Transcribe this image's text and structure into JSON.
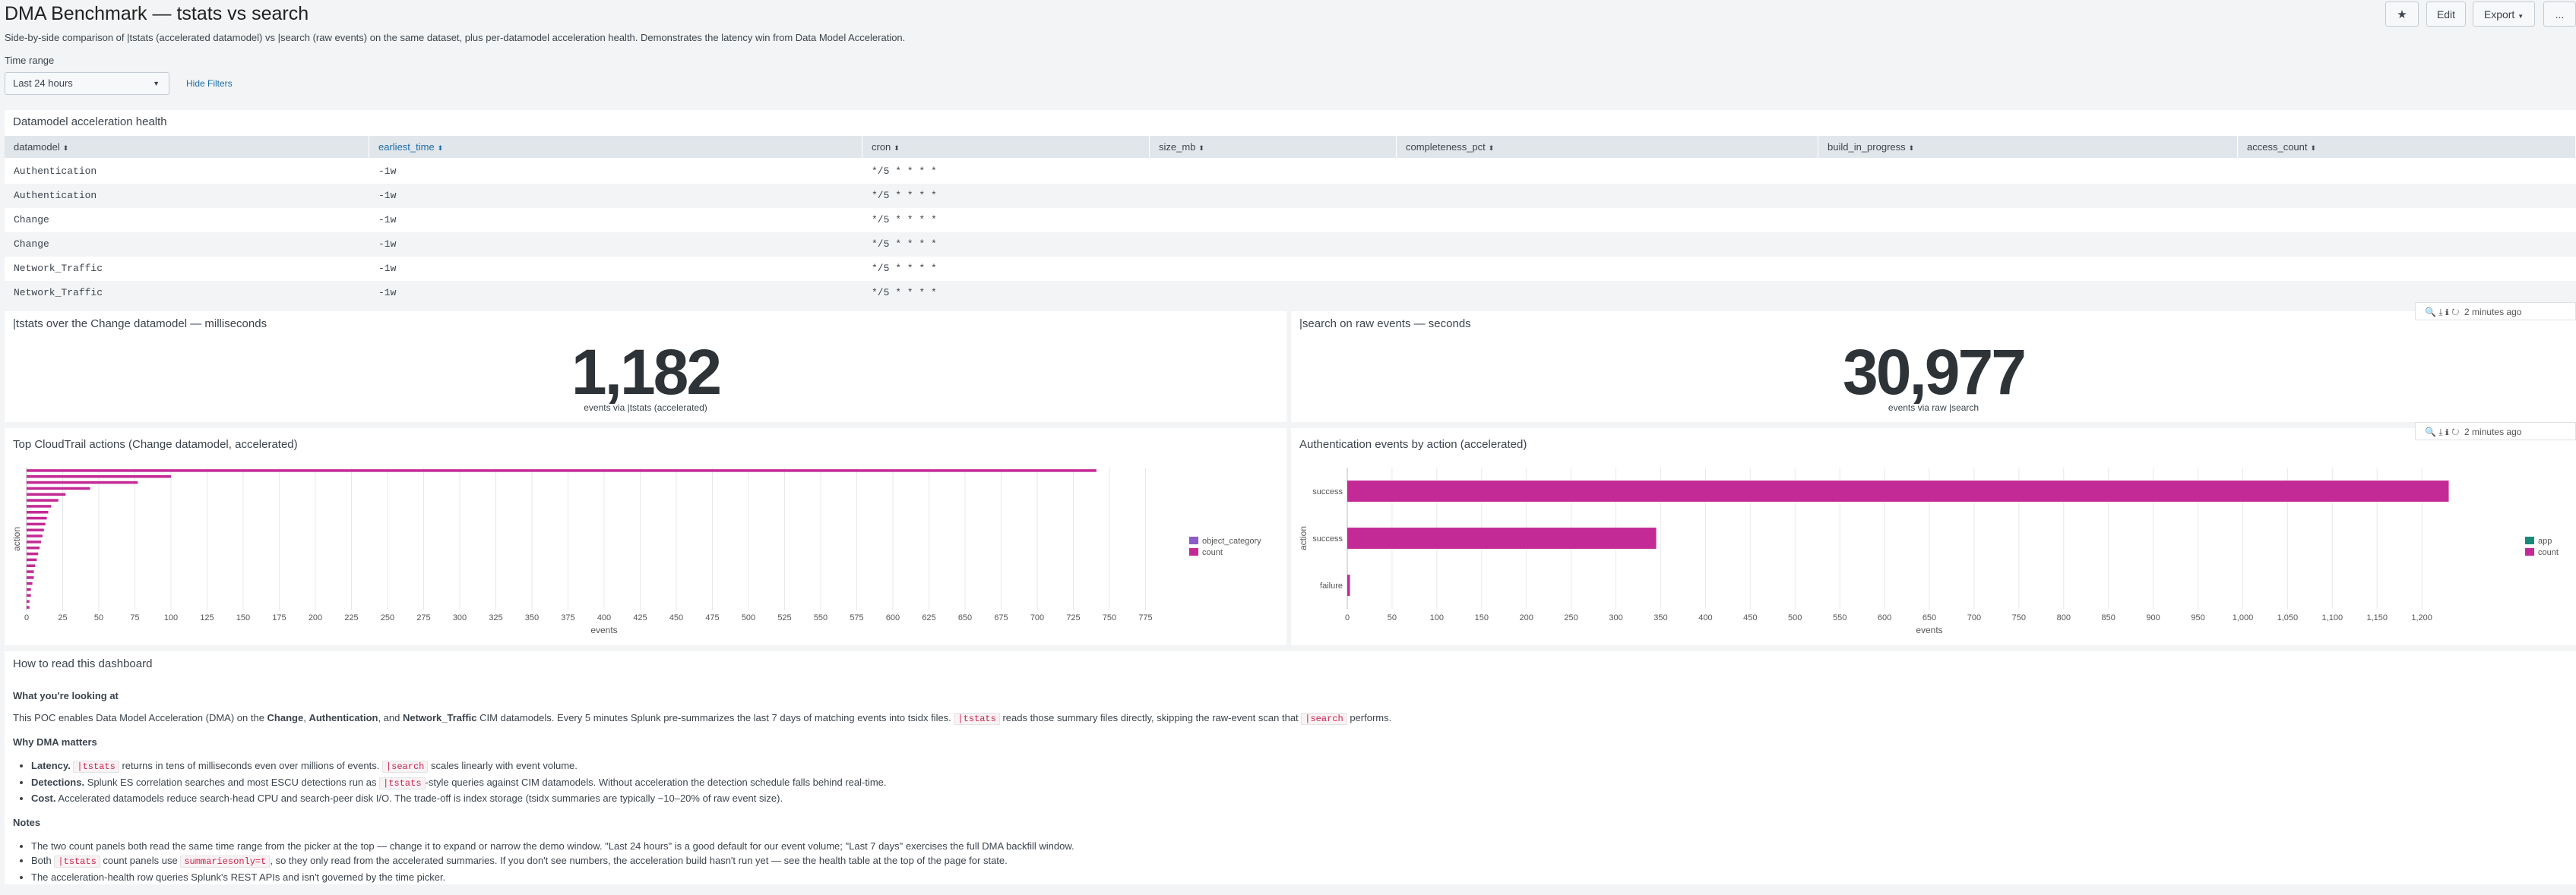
{
  "header": {
    "title": "DMA Benchmark — tstats vs search",
    "description": "Side-by-side comparison of |tstats (accelerated datamodel) vs |search (raw events) on the same dataset, plus per-datamodel acceleration health. Demonstrates the latency win from Data Model Acceleration.",
    "time_range_label": "Time range",
    "time_range_value": "Last 24 hours",
    "hide_filters": "Hide Filters",
    "buttons": [
      "Edit",
      "Export",
      "..."
    ]
  },
  "toolbar": {
    "updated": "2 minutes ago"
  },
  "table": {
    "title": "Datamodel acceleration health",
    "columns": [
      "datamodel",
      "earliest_time",
      "cron",
      "size_mb",
      "completeness_pct",
      "build_in_progress",
      "access_count"
    ],
    "rows": [
      [
        "Authentication",
        "-1w",
        "*/5 * * * *"
      ],
      [
        "Authentication",
        "-1w",
        "*/5 * * * *"
      ],
      [
        "Change",
        "-1w",
        "*/5 * * * *"
      ],
      [
        "Change",
        "-1w",
        "*/5 * * * *"
      ],
      [
        "Network_Traffic",
        "-1w",
        "*/5 * * * *"
      ],
      [
        "Network_Traffic",
        "-1w",
        "*/5 * * * *"
      ]
    ]
  },
  "singles": [
    {
      "title": "|tstats over the Change datamodel — milliseconds",
      "value": 1182,
      "value_label": "1,182",
      "caption": "events via |tstats (accelerated)"
    },
    {
      "title": "|search on raw events — seconds",
      "value": 30977,
      "value_label": "30,977",
      "caption": "events via raw |search"
    }
  ],
  "chart_data": [
    {
      "type": "hbar",
      "title": "Top CloudTrail actions (Change datamodel, accelerated)",
      "x_label": "events",
      "y_label": "action",
      "categories": [
        null,
        null,
        null,
        null,
        null,
        null,
        null,
        null,
        null,
        null,
        null,
        null,
        null,
        null,
        null,
        null,
        null,
        null,
        null,
        null,
        null,
        null,
        null,
        null
      ],
      "series": [
        {
          "name": "object_category",
          "color": "#8a5cc7",
          "values": [
            null,
            null,
            null,
            null,
            null,
            null,
            null,
            null,
            null,
            null,
            null,
            null,
            null,
            null,
            null,
            null,
            null,
            null,
            null,
            null,
            null,
            null,
            null,
            null
          ]
        },
        {
          "name": "count",
          "color": "#c42a96",
          "values": [
            741,
            100,
            77,
            44,
            27,
            22,
            17,
            15,
            14,
            13,
            12,
            11,
            10,
            9,
            8,
            7,
            6,
            5,
            5,
            4,
            3,
            3,
            2,
            2
          ]
        }
      ],
      "xlim": [
        0,
        800
      ],
      "xticks": [
        0,
        25,
        50,
        75,
        100,
        125,
        150,
        175,
        200,
        225,
        250,
        275,
        300,
        325,
        350,
        375,
        400,
        425,
        450,
        475,
        500,
        525,
        550,
        575,
        600,
        625,
        650,
        675,
        700,
        725,
        750,
        775
      ],
      "grid": true,
      "legend": "right"
    },
    {
      "type": "hbar",
      "title": "Authentication events by action (accelerated)",
      "x_label": "events",
      "y_label": "action",
      "categories": [
        "success",
        "success",
        "failure"
      ],
      "series": [
        {
          "name": "app",
          "color": "#1a8a78",
          "values": [
            null,
            null,
            null
          ]
        },
        {
          "name": "count",
          "color": "#c42a96",
          "values": [
            1230,
            345,
            3
          ]
        }
      ],
      "xlim": [
        0,
        1300
      ],
      "xticks": [
        0,
        50,
        100,
        150,
        200,
        250,
        300,
        350,
        400,
        450,
        500,
        550,
        600,
        650,
        700,
        750,
        800,
        850,
        900,
        950,
        {
          "value": 1000,
          "label": "1,000"
        },
        {
          "value": 1050,
          "label": "1,050"
        },
        {
          "value": 1100,
          "label": "1,100"
        },
        {
          "value": 1150,
          "label": "1,150"
        },
        {
          "value": 1200,
          "label": "1,200"
        }
      ],
      "grid": true,
      "legend": "right"
    }
  ],
  "docs": {
    "title": "How to read this dashboard",
    "sections": [
      {
        "heading": "What you're looking at",
        "paragraphs": [
          [
            "This POC enables Data Model Acceleration (DMA) on the ",
            {
              "text": "Change",
              "style": "bold"
            },
            ", ",
            {
              "text": "Authentication",
              "style": "bold"
            },
            ", and ",
            {
              "text": "Network_Traffic",
              "style": "bold"
            },
            " CIM datamodels. Every 5 minutes Splunk pre-summarizes the last 7 days of matching events into tsidx files. ",
            {
              "text": "|tstats",
              "style": "code"
            },
            " reads those summary files directly, skipping the raw-event scan that ",
            {
              "text": "|search",
              "style": "code"
            },
            " performs."
          ]
        ]
      },
      {
        "heading": "Why DMA matters",
        "bullets": [
          [
            {
              "text": "Latency.",
              "style": "bold"
            },
            " ",
            {
              "text": "|tstats",
              "style": "code"
            },
            " returns in tens of milliseconds even over millions of events. ",
            {
              "text": "|search",
              "style": "code"
            },
            " scales linearly with event volume."
          ],
          [
            {
              "text": "Detections.",
              "style": "bold"
            },
            " Splunk ES correlation searches and most ESCU detections run as ",
            {
              "text": "|tstats",
              "style": "code"
            },
            "-style queries against CIM datamodels. Without acceleration the detection schedule falls behind real-time."
          ],
          [
            {
              "text": "Cost.",
              "style": "bold"
            },
            " Accelerated datamodels reduce search-head CPU and search-peer disk I/O. The trade-off is index storage (tsidx summaries are typically ~10–20% of raw event size)."
          ]
        ]
      },
      {
        "heading": "Notes",
        "bullets": [
          [
            "The two count panels both read the same time range from the picker at the top — change it to expand or narrow the demo window. \"Last 24 hours\" is a good default for our event volume; \"Last 7 days\" exercises the full DMA backfill window."
          ],
          [
            "Both ",
            {
              "text": "|tstats",
              "style": "code"
            },
            " count panels use ",
            {
              "text": "summariesonly=t",
              "style": "code"
            },
            ", so they only read from the accelerated summaries. If you don't see numbers, the acceleration build hasn't run yet — see the health table at the top of the page for state."
          ],
          [
            "The acceleration-health row queries Splunk's REST APIs and isn't governed by the time picker."
          ]
        ]
      }
    ]
  }
}
